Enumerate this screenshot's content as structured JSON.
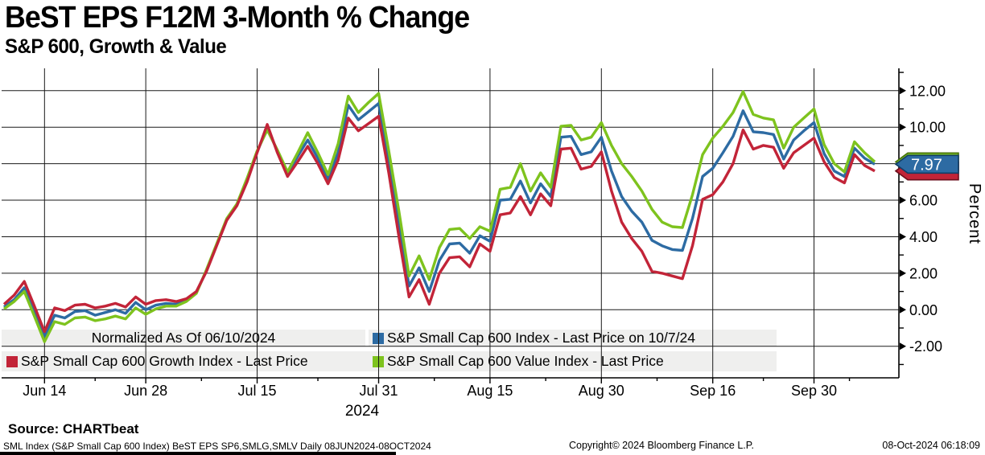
{
  "header": {
    "title": "BeST EPS F12M 3-Month % Change",
    "subtitle": "S&P 600, Growth & Value"
  },
  "legend": {
    "normalized_note": "Normalized As Of 06/10/2024",
    "entries": [
      {
        "label": "S&P Small Cap 600 Index - Last Price on 10/7/24",
        "color": "#2d6ba3"
      },
      {
        "label": "S&P Small Cap 600 Growth Index - Last Price",
        "color": "#c22438"
      },
      {
        "label": "S&P Small Cap 600 Value Index - Last Price",
        "color": "#7ec31e"
      }
    ]
  },
  "price_badge": {
    "value": "7.97",
    "color": "#2d6ba3"
  },
  "y_axis_title": "Percent",
  "x_year_label": "2024",
  "footer": {
    "source": "Source: CHARTbeat",
    "meta": "SML Index (S&P Small Cap 600 Index) BeST EPS SP6,SMLG,SMLV  Daily 08JUN2024-08OCT2024",
    "copyright": "Copyright© 2024 Bloomberg Finance L.P.",
    "datetime": "08-Oct-2024 06:18:09"
  },
  "chart_data": {
    "type": "line",
    "title": "BeST EPS F12M 3-Month % Change",
    "subtitle": "S&P 600, Growth & Value",
    "ylabel": "Percent",
    "ylim": [
      -2,
      12
    ],
    "y_ticks": [
      12,
      10,
      8,
      6,
      4,
      2,
      0,
      -2
    ],
    "y_tick_labels": [
      "12.00",
      "10.00",
      "8.00",
      "6.00",
      "4.00",
      "2.00",
      "0.00",
      "-2.00"
    ],
    "x_tick_labels": [
      "Jun 14",
      "Jun 28",
      "Jul 15",
      "Jul 31",
      "Aug 15",
      "Aug 30",
      "Sep 16",
      "Sep 30"
    ],
    "x_tick_indices": [
      4,
      14,
      25,
      37,
      48,
      59,
      70,
      80
    ],
    "x_range_note": "Daily 08JUN2024-08OCT2024",
    "normalized_as_of": "06/10/2024",
    "grid": true,
    "legend_position": "bottom-inside",
    "series": [
      {
        "name": "S&P Small Cap 600 Index - Last Price on 10/7/24",
        "color": "#2d6ba3",
        "last_value": 7.97,
        "values": [
          0.15,
          0.55,
          1.2,
          -0.1,
          -1.45,
          -0.3,
          -0.45,
          -0.1,
          -0.05,
          -0.3,
          -0.15,
          0.0,
          -0.2,
          0.4,
          0.0,
          0.25,
          0.35,
          0.3,
          0.5,
          0.95,
          2.15,
          3.55,
          4.95,
          5.75,
          7.1,
          8.65,
          9.95,
          8.7,
          7.45,
          8.4,
          9.3,
          8.3,
          7.15,
          8.6,
          11.2,
          10.4,
          10.85,
          11.3,
          8.2,
          4.8,
          1.3,
          2.3,
          1.0,
          2.7,
          3.6,
          3.65,
          3.1,
          4.05,
          3.75,
          6.0,
          6.05,
          7.05,
          5.85,
          6.9,
          6.2,
          9.45,
          9.5,
          8.5,
          8.65,
          9.45,
          7.6,
          6.2,
          5.4,
          4.8,
          3.8,
          3.5,
          3.3,
          3.25,
          5.0,
          7.3,
          7.75,
          8.6,
          9.5,
          10.9,
          9.75,
          9.7,
          9.6,
          8.25,
          9.3,
          9.8,
          10.25,
          8.55,
          7.6,
          7.3,
          8.85,
          8.3,
          7.97
        ]
      },
      {
        "name": "S&P Small Cap 600 Growth Index - Last Price",
        "color": "#c22438",
        "last_value": 7.6,
        "values": [
          0.3,
          0.8,
          1.55,
          0.2,
          -1.2,
          0.1,
          -0.05,
          0.25,
          0.3,
          0.1,
          0.2,
          0.35,
          0.15,
          0.7,
          0.3,
          0.5,
          0.55,
          0.45,
          0.6,
          1.0,
          2.1,
          3.5,
          4.9,
          5.7,
          7.0,
          8.6,
          10.15,
          8.6,
          7.3,
          8.1,
          8.95,
          8.0,
          6.9,
          8.2,
          10.5,
          9.8,
          10.2,
          10.6,
          7.5,
          4.0,
          0.7,
          1.65,
          0.3,
          2.0,
          2.85,
          2.9,
          2.35,
          3.6,
          3.2,
          5.2,
          5.3,
          6.2,
          5.2,
          6.35,
          5.7,
          8.8,
          8.85,
          7.7,
          7.85,
          8.65,
          6.5,
          4.8,
          3.9,
          3.2,
          2.1,
          2.0,
          1.85,
          1.7,
          3.5,
          6.05,
          6.3,
          7.0,
          8.0,
          9.85,
          8.8,
          9.0,
          8.9,
          7.75,
          8.6,
          9.0,
          9.4,
          8.1,
          7.25,
          6.95,
          8.5,
          7.9,
          7.6
        ]
      },
      {
        "name": "S&P Small Cap 600 Value Index - Last Price",
        "color": "#7ec31e",
        "last_value": 8.1,
        "values": [
          0.05,
          0.45,
          1.0,
          -0.35,
          -1.75,
          -0.65,
          -0.8,
          -0.45,
          -0.4,
          -0.6,
          -0.5,
          -0.35,
          -0.5,
          0.1,
          -0.25,
          0.05,
          0.2,
          0.2,
          0.45,
          0.9,
          2.2,
          3.6,
          5.0,
          5.8,
          7.2,
          8.7,
          9.85,
          8.75,
          7.55,
          8.6,
          9.7,
          8.6,
          7.4,
          9.1,
          11.7,
          10.8,
          11.35,
          11.85,
          8.7,
          5.4,
          1.85,
          2.95,
          1.65,
          3.4,
          4.4,
          4.45,
          3.9,
          4.55,
          4.3,
          6.6,
          6.7,
          8.0,
          6.5,
          7.5,
          6.7,
          10.05,
          10.1,
          9.3,
          9.45,
          10.25,
          9.0,
          8.0,
          7.3,
          6.5,
          5.5,
          4.8,
          4.55,
          4.5,
          6.3,
          8.5,
          9.4,
          10.05,
          10.8,
          11.95,
          10.7,
          10.5,
          10.4,
          8.85,
          10.0,
          10.5,
          11.0,
          9.05,
          8.0,
          7.55,
          9.2,
          8.6,
          8.1
        ]
      }
    ]
  }
}
